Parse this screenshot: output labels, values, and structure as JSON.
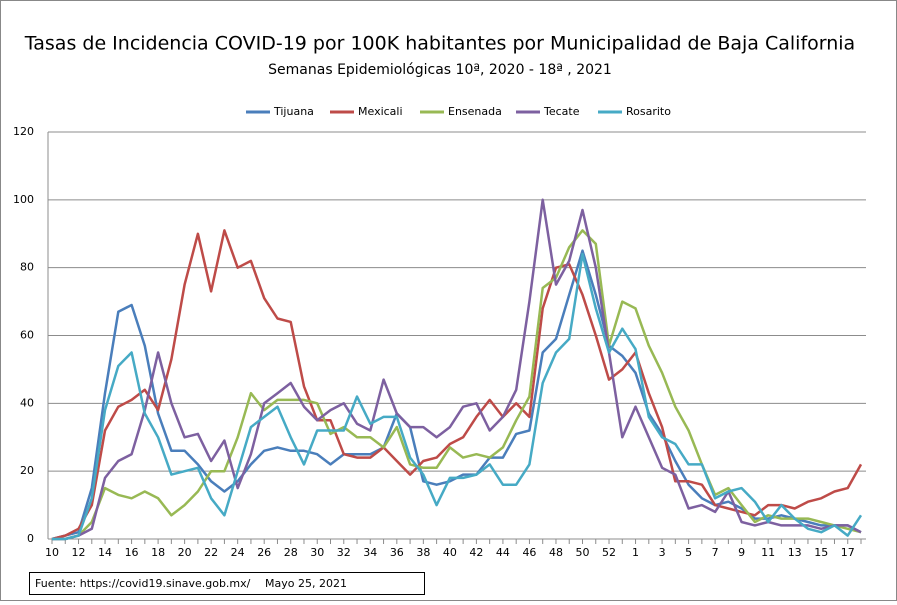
{
  "chart_data": {
    "type": "line",
    "title": "Tasas de Incidencia COVID-19 por 100K habitantes por Municipalidad de Baja California",
    "subtitle": "Semanas Epidemiológicas 10ª, 2020  -  18ª , 2021",
    "source": "Fuente:  https://covid19.sinave.gob.mx/",
    "date": "Mayo 25, 2021",
    "categories": [
      "10",
      null,
      "12",
      null,
      "14",
      null,
      "16",
      null,
      "18",
      null,
      "20",
      null,
      "22",
      null,
      "24",
      null,
      "26",
      null,
      "28",
      null,
      "30",
      null,
      "32",
      null,
      "34",
      null,
      "36",
      null,
      "38",
      null,
      "40",
      null,
      "42",
      null,
      "44",
      null,
      "46",
      null,
      "48",
      null,
      "50",
      null,
      "52",
      null,
      "1",
      null,
      "3",
      null,
      "5",
      null,
      "7",
      null,
      "9",
      null,
      "11",
      null,
      "13",
      null,
      "15",
      null,
      "17",
      null
    ],
    "ylim": [
      0,
      120
    ],
    "yticks": [
      0,
      20,
      40,
      60,
      80,
      100,
      120
    ],
    "grid": true,
    "legend": "top",
    "series": [
      {
        "name": "Tijuana",
        "color": "#4a7ebb",
        "values": [
          0,
          1,
          2,
          15,
          43,
          67,
          69,
          57,
          37,
          26,
          26,
          22,
          17,
          14,
          17,
          22,
          26,
          27,
          26,
          26,
          25,
          22,
          25,
          25,
          25,
          27,
          37,
          33,
          17,
          16,
          17,
          19,
          19,
          24,
          24,
          31,
          32,
          55,
          59,
          72,
          85,
          72,
          57,
          54,
          49,
          37,
          31,
          23,
          16,
          12,
          10,
          11,
          9,
          6,
          6,
          7,
          6,
          5,
          4,
          4,
          4,
          2
        ]
      },
      {
        "name": "Mexicali",
        "color": "#be4b48",
        "values": [
          0,
          1,
          3,
          10,
          32,
          39,
          41,
          44,
          38,
          53,
          75,
          90,
          73,
          91,
          80,
          82,
          71,
          65,
          64,
          45,
          35,
          35,
          25,
          24,
          24,
          27,
          23,
          19,
          23,
          24,
          28,
          30,
          36,
          41,
          36,
          40,
          36,
          68,
          80,
          81,
          72,
          60,
          47,
          50,
          55,
          43,
          33,
          17,
          17,
          16,
          10,
          9,
          8,
          7,
          10,
          10,
          9,
          11,
          12,
          14,
          15,
          22
        ]
      },
      {
        "name": "Ensenada",
        "color": "#98b954",
        "values": [
          0,
          0,
          1,
          5,
          15,
          13,
          12,
          14,
          12,
          7,
          10,
          14,
          20,
          20,
          30,
          43,
          38,
          41,
          41,
          41,
          40,
          31,
          33,
          30,
          30,
          27,
          33,
          22,
          21,
          21,
          27,
          24,
          25,
          24,
          27,
          35,
          42,
          74,
          77,
          86,
          91,
          87,
          57,
          70,
          68,
          57,
          49,
          39,
          32,
          22,
          13,
          15,
          10,
          5,
          7,
          6,
          6,
          6,
          5,
          4,
          3,
          2
        ]
      },
      {
        "name": "Tecate",
        "color": "#7d60a0",
        "values": [
          0,
          0,
          1,
          3,
          18,
          23,
          25,
          38,
          55,
          40,
          30,
          31,
          23,
          29,
          15,
          25,
          40,
          43,
          46,
          39,
          35,
          38,
          40,
          34,
          32,
          47,
          37,
          33,
          33,
          30,
          33,
          39,
          40,
          32,
          36,
          44,
          70,
          100,
          75,
          82,
          97,
          80,
          55,
          30,
          39,
          30,
          21,
          19,
          9,
          10,
          8,
          14,
          5,
          4,
          5,
          4,
          4,
          4,
          3,
          4,
          4,
          2
        ]
      },
      {
        "name": "Rosarito",
        "color": "#46aac5",
        "values": [
          0,
          0,
          1,
          12,
          38,
          51,
          55,
          37,
          30,
          19,
          20,
          21,
          12,
          7,
          20,
          33,
          36,
          39,
          30,
          22,
          32,
          32,
          32,
          42,
          34,
          36,
          36,
          24,
          19,
          10,
          18,
          18,
          19,
          22,
          16,
          16,
          22,
          46,
          55,
          59,
          84,
          68,
          55,
          62,
          56,
          36,
          30,
          28,
          22,
          22,
          12,
          14,
          15,
          11,
          5,
          10,
          6,
          3,
          2,
          4,
          1,
          7
        ]
      }
    ]
  }
}
